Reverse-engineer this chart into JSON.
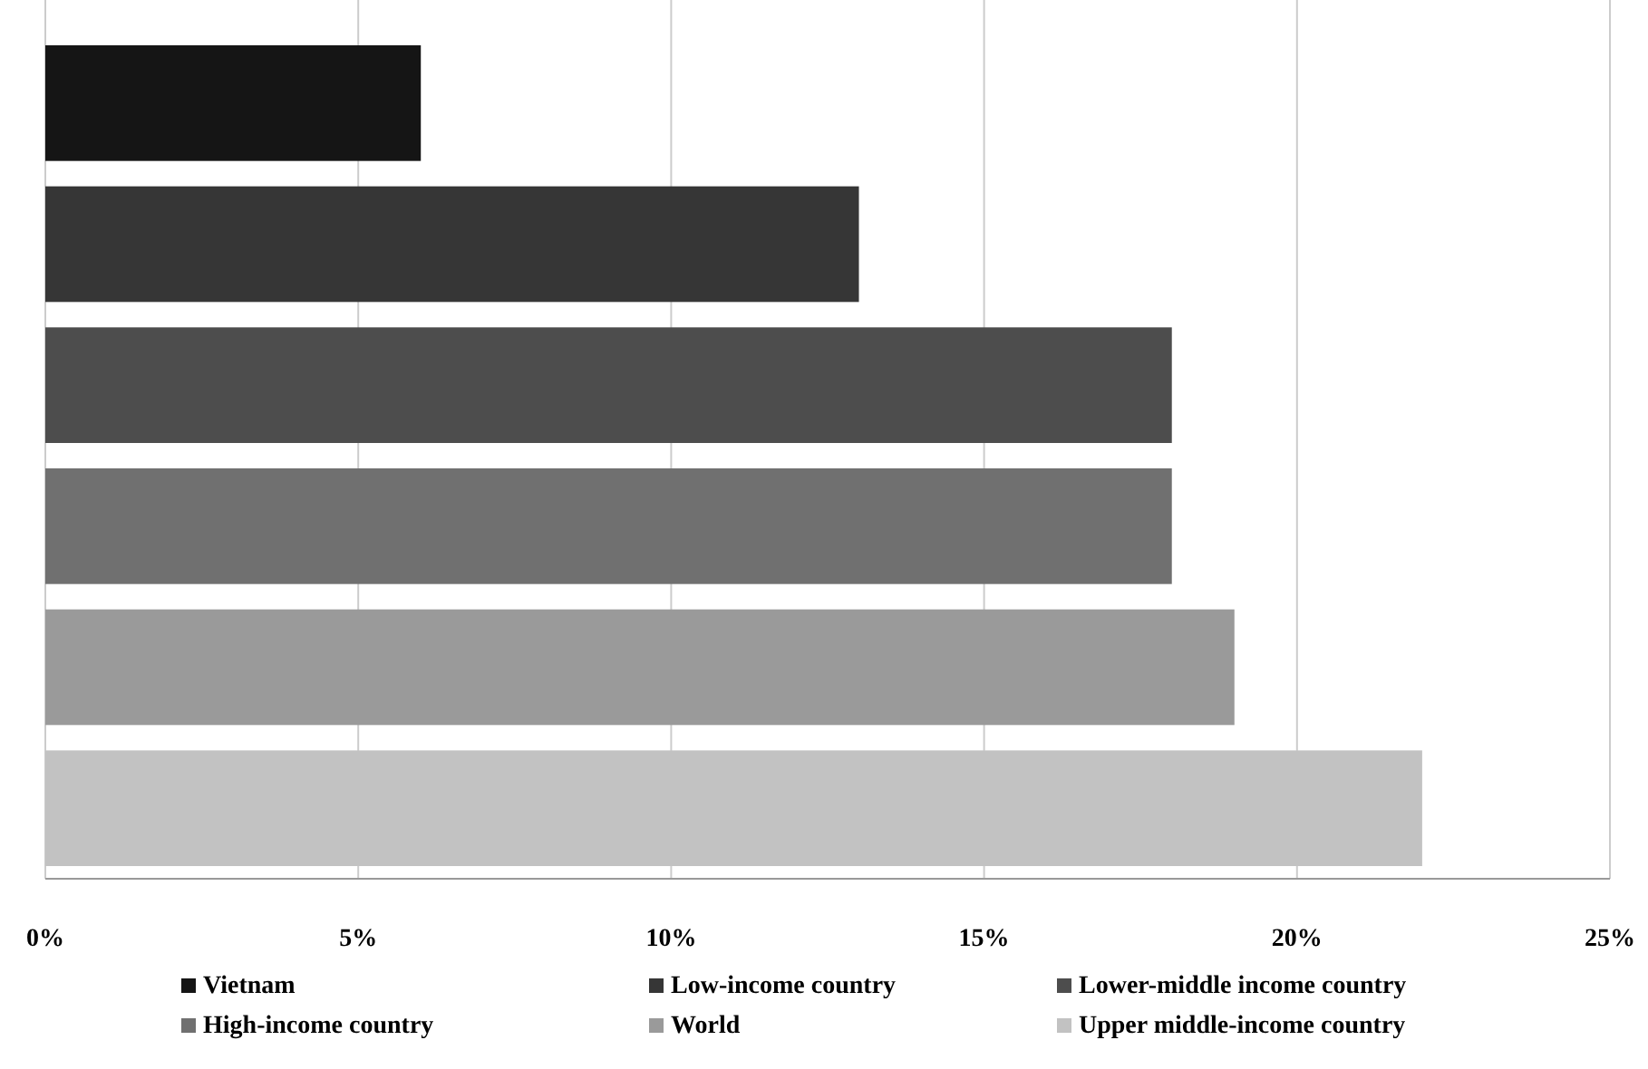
{
  "chart_data": {
    "type": "bar",
    "orientation": "horizontal",
    "categories": [
      null,
      null,
      null,
      null,
      null,
      null
    ],
    "series": [
      {
        "name": "Vietnam",
        "color": "#151515",
        "values": [
          6,
          null,
          null,
          null,
          null,
          null
        ]
      },
      {
        "name": "Low-income country",
        "color": "#363636",
        "values": [
          null,
          13,
          null,
          null,
          null,
          null
        ]
      },
      {
        "name": "Lower-middle income country",
        "color": "#4d4d4d",
        "values": [
          null,
          null,
          18,
          null,
          null,
          null
        ]
      },
      {
        "name": "High-income country",
        "color": "#707070",
        "values": [
          null,
          null,
          null,
          18,
          null,
          null
        ]
      },
      {
        "name": "World",
        "color": "#9a9a9a",
        "values": [
          null,
          null,
          null,
          null,
          19,
          null
        ]
      },
      {
        "name": "Upper middle-income country",
        "color": "#c2c2c2",
        "values": [
          null,
          null,
          null,
          null,
          null,
          22
        ]
      }
    ],
    "xlim": [
      0,
      25
    ],
    "xticks": [
      {
        "value": 0,
        "label": "0%"
      },
      {
        "value": 5,
        "label": "5%"
      },
      {
        "value": 10,
        "label": "10%"
      },
      {
        "value": 15,
        "label": "15%"
      },
      {
        "value": 20,
        "label": "20%"
      },
      {
        "value": 25,
        "label": "25%"
      }
    ],
    "grid": "x",
    "legend": "bottom"
  }
}
